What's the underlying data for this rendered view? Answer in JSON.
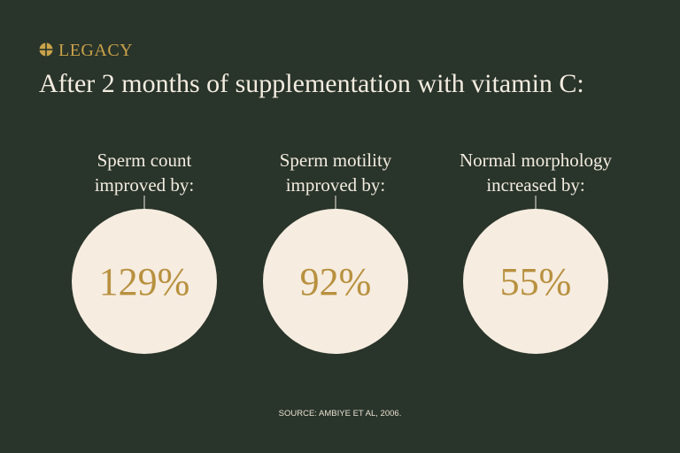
{
  "header": {
    "brand": "LEGACY",
    "title": "After 2 months of supplementation with vitamin C:"
  },
  "stats": [
    {
      "label_lines": [
        "Sperm count",
        "improved by:"
      ],
      "value": "129%"
    },
    {
      "label_lines": [
        "Sperm motility",
        "improved by:"
      ],
      "value": "92%"
    },
    {
      "label_lines": [
        "Normal morphology",
        "increased by:"
      ],
      "value": "55%"
    }
  ],
  "footer": {
    "source": "SOURCE: AMBIYE ET AL, 2006."
  }
}
